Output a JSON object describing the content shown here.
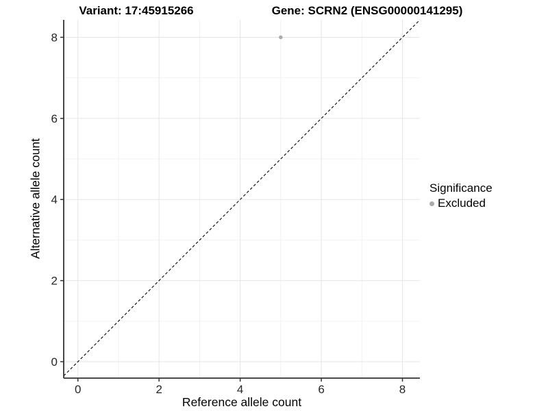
{
  "chart_data": {
    "type": "scatter",
    "title_left": "Variant: 17:45915266",
    "title_right": "Gene: SCRN2 (ENSG00000141295)",
    "xlabel": "Reference allele count",
    "ylabel": "Alternative allele count",
    "xlim": [
      -0.35,
      8.43
    ],
    "ylim": [
      -0.405,
      8.43
    ],
    "x_ticks": [
      0,
      2,
      4,
      6,
      8
    ],
    "y_ticks": [
      0,
      2,
      4,
      6,
      8
    ],
    "minor_gridlines_x": [
      1,
      3,
      5,
      7
    ],
    "minor_gridlines_y": [
      1,
      3,
      5,
      7
    ],
    "grid": "on",
    "identity_line": {
      "style": "dashed",
      "color": "#000000",
      "slope": 1,
      "intercept": 0
    },
    "series": [
      {
        "name": "Excluded",
        "color": "#ababab",
        "marker": "circle",
        "points": [
          {
            "x": 5,
            "y": 8
          }
        ]
      }
    ],
    "legend": {
      "title": "Significance",
      "position": "right",
      "items": [
        {
          "label": "Excluded",
          "color": "#ababab",
          "marker": "circle"
        }
      ]
    },
    "colors": {
      "major_grid": "#e5e5e5",
      "minor_grid": "#f2f2f2",
      "axis_line": "#333333",
      "tick_label": "#262626",
      "title_text": "#000000",
      "background": "#ffffff"
    }
  }
}
